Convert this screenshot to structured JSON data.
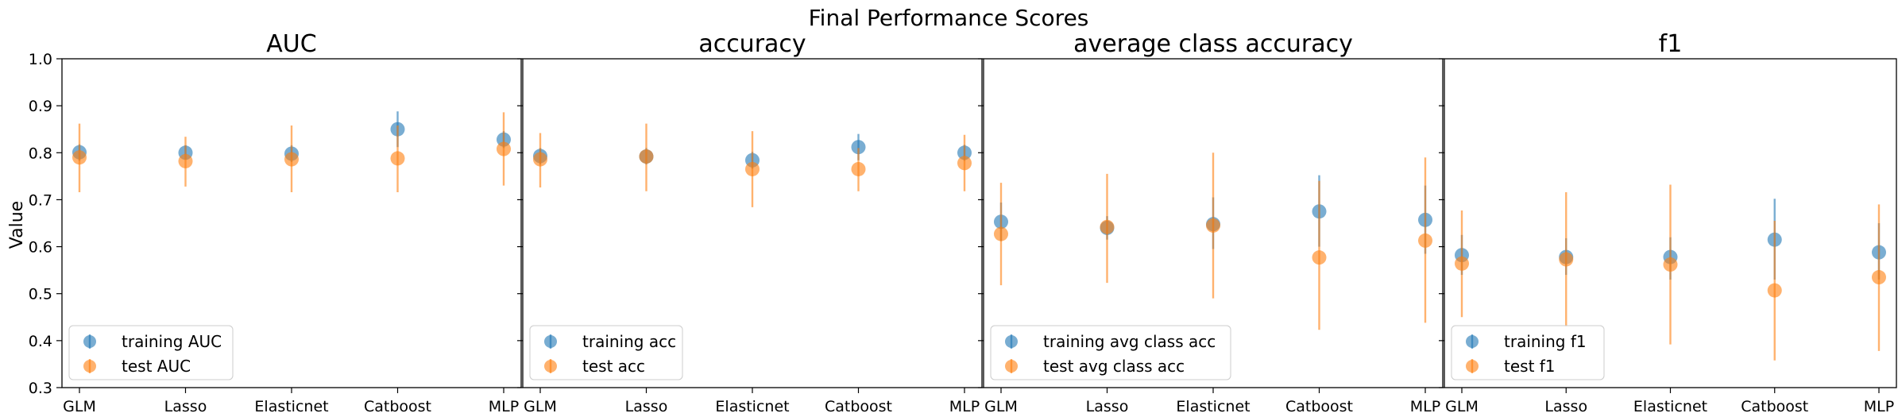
{
  "figure_title": "Final Performance Scores",
  "ylabel": "Value",
  "colors": {
    "training": "#1f77b4",
    "test": "#ff7f0e"
  },
  "chart_data": [
    {
      "type": "scatter",
      "title": "AUC",
      "categories": [
        "GLM",
        "Lasso",
        "Elasticnet",
        "Catboost",
        "MLP"
      ],
      "ylim": [
        0.3,
        1.0
      ],
      "yticks": [
        "0.3",
        "0.4",
        "0.5",
        "0.6",
        "0.7",
        "0.8",
        "0.9",
        "1.0"
      ],
      "legend": "lower-left",
      "series": [
        {
          "name": "training AUC",
          "values": [
            0.801,
            0.8,
            0.798,
            0.85,
            0.828
          ],
          "err_low": [
            0.783,
            0.785,
            0.78,
            0.812,
            0.81
          ],
          "err_high": [
            0.818,
            0.816,
            0.816,
            0.888,
            0.846
          ]
        },
        {
          "name": "test AUC",
          "values": [
            0.79,
            0.782,
            0.786,
            0.788,
            0.808
          ],
          "err_low": [
            0.716,
            0.728,
            0.716,
            0.716,
            0.73
          ],
          "err_high": [
            0.862,
            0.834,
            0.858,
            0.858,
            0.886
          ]
        }
      ]
    },
    {
      "type": "scatter",
      "title": "accuracy",
      "categories": [
        "GLM",
        "Lasso",
        "Elasticnet",
        "Catboost",
        "MLP"
      ],
      "ylim": [
        0.3,
        1.0
      ],
      "yticks": [
        "0.3",
        "0.4",
        "0.5",
        "0.6",
        "0.7",
        "0.8",
        "0.9",
        "1.0"
      ],
      "legend": "lower-left",
      "series": [
        {
          "name": "training acc",
          "values": [
            0.793,
            0.792,
            0.784,
            0.812,
            0.8
          ],
          "err_low": [
            0.775,
            0.775,
            0.766,
            0.784,
            0.783
          ],
          "err_high": [
            0.81,
            0.81,
            0.802,
            0.84,
            0.817
          ]
        },
        {
          "name": "test acc",
          "values": [
            0.786,
            0.792,
            0.765,
            0.765,
            0.778
          ],
          "err_low": [
            0.726,
            0.718,
            0.684,
            0.718,
            0.718
          ],
          "err_high": [
            0.842,
            0.862,
            0.846,
            0.81,
            0.838
          ]
        }
      ]
    },
    {
      "type": "scatter",
      "title": "average class accuracy",
      "categories": [
        "GLM",
        "Lasso",
        "Elasticnet",
        "Catboost",
        "MLP"
      ],
      "ylim": [
        0.3,
        1.0
      ],
      "yticks": [
        "0.3",
        "0.4",
        "0.5",
        "0.6",
        "0.7",
        "0.8",
        "0.9",
        "1.0"
      ],
      "legend": "lower-left",
      "series": [
        {
          "name": "training avg class acc",
          "values": [
            0.653,
            0.64,
            0.648,
            0.675,
            0.657
          ],
          "err_low": [
            0.612,
            0.615,
            0.595,
            0.6,
            0.585
          ],
          "err_high": [
            0.694,
            0.665,
            0.705,
            0.752,
            0.73
          ]
        },
        {
          "name": "test avg class acc",
          "values": [
            0.627,
            0.642,
            0.645,
            0.577,
            0.613
          ],
          "err_low": [
            0.518,
            0.523,
            0.49,
            0.423,
            0.438
          ],
          "err_high": [
            0.736,
            0.755,
            0.8,
            0.74,
            0.79
          ]
        }
      ]
    },
    {
      "type": "scatter",
      "title": "f1",
      "categories": [
        "GLM",
        "Lasso",
        "Elasticnet",
        "Catboost",
        "MLP"
      ],
      "ylim": [
        0.3,
        1.0
      ],
      "yticks": [
        "0.3",
        "0.4",
        "0.5",
        "0.6",
        "0.7",
        "0.8",
        "0.9",
        "1.0"
      ],
      "legend": "lower-left",
      "series": [
        {
          "name": "training f1",
          "values": [
            0.582,
            0.578,
            0.578,
            0.615,
            0.588
          ],
          "err_low": [
            0.54,
            0.54,
            0.53,
            0.53,
            0.53
          ],
          "err_high": [
            0.625,
            0.618,
            0.62,
            0.702,
            0.65
          ]
        },
        {
          "name": "test f1",
          "values": [
            0.564,
            0.573,
            0.562,
            0.507,
            0.535
          ],
          "err_low": [
            0.45,
            0.43,
            0.392,
            0.358,
            0.378
          ],
          "err_high": [
            0.677,
            0.716,
            0.732,
            0.655,
            0.69
          ]
        }
      ]
    }
  ]
}
